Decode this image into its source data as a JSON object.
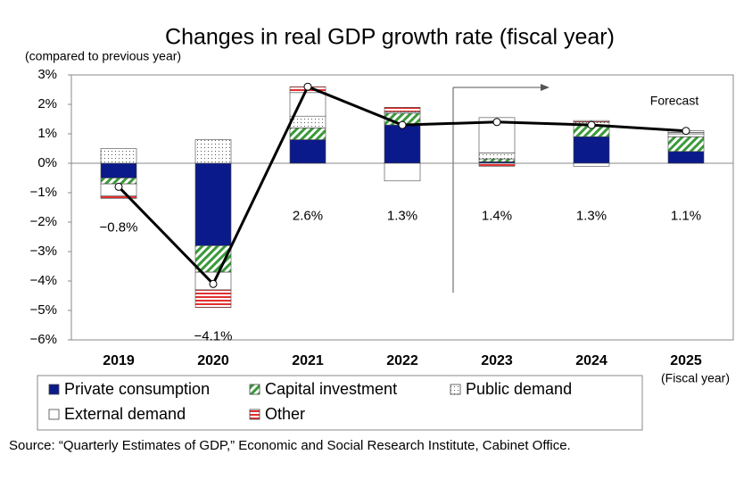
{
  "chart_data": {
    "type": "stacked-bar-line",
    "title": "Changes in real GDP growth rate (fiscal year)",
    "y_axis_label": "(compared to previous year)",
    "x_axis_label": "(Fiscal year)",
    "annotation": "Forecast",
    "source": "Source: “Quarterly Estimates of GDP,” Economic and Social Research Institute, Cabinet Office.",
    "categories": [
      "2019",
      "2020",
      "2021",
      "2022",
      "2023",
      "2024",
      "2025"
    ],
    "ylim": [
      -6,
      3
    ],
    "yticks": [
      {
        "value": 3,
        "label": "3%"
      },
      {
        "value": 2,
        "label": "2%"
      },
      {
        "value": 1,
        "label": "1%"
      },
      {
        "value": 0,
        "label": "0%"
      },
      {
        "value": -1,
        "label": "−1%"
      },
      {
        "value": -2,
        "label": "−2%"
      },
      {
        "value": -3,
        "label": "−3%"
      },
      {
        "value": -4,
        "label": "−4%"
      },
      {
        "value": -5,
        "label": "−5%"
      },
      {
        "value": -6,
        "label": "−6%"
      }
    ],
    "series": [
      {
        "name": "Private consumption",
        "color": "#0b1a8a",
        "pattern": "solid",
        "values": [
          -0.5,
          -2.8,
          0.8,
          1.3,
          0.05,
          0.9,
          0.4
        ]
      },
      {
        "name": "Capital investment",
        "color": "#3a9a3a",
        "pattern": "diagonal",
        "values": [
          -0.2,
          -0.9,
          0.4,
          0.4,
          0.1,
          0.4,
          0.5
        ]
      },
      {
        "name": "Public demand",
        "color": "#555555",
        "pattern": "dots",
        "values": [
          0.5,
          0.8,
          0.4,
          0.05,
          0.2,
          0.1,
          0.1
        ]
      },
      {
        "name": "External demand",
        "color": "#333333",
        "pattern": "none",
        "values": [
          -0.4,
          -0.6,
          0.8,
          -0.6,
          1.2,
          -0.1,
          0.05
        ]
      },
      {
        "name": "Other",
        "color": "#e03030",
        "pattern": "horizontal",
        "values": [
          -0.1,
          -0.6,
          0.2,
          0.15,
          -0.1,
          0.05,
          0.05
        ]
      }
    ],
    "total": {
      "color": "#000000",
      "values": [
        -0.8,
        -4.1,
        2.6,
        1.3,
        1.4,
        1.3,
        1.1
      ],
      "value_labels": [
        "−0.8%",
        "−4.1%",
        "2.6%",
        "1.3%",
        "1.4%",
        "1.3%",
        "1.1%"
      ]
    }
  }
}
